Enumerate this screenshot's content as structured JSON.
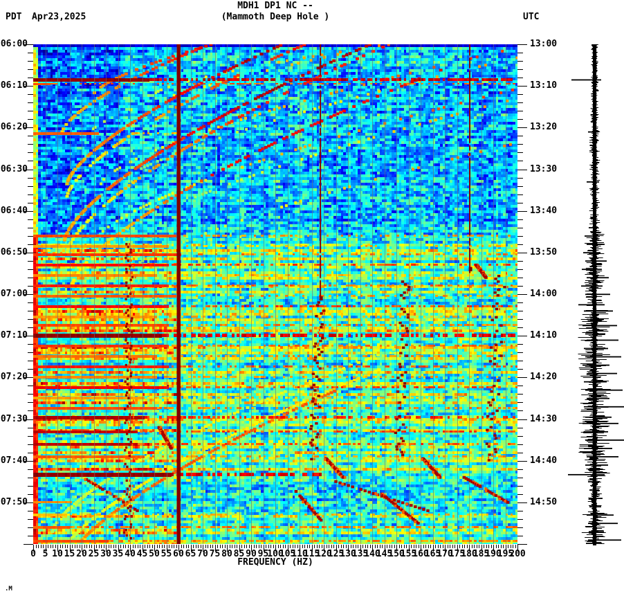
{
  "page": {
    "background": "#ffffff",
    "text_color": "#000000"
  },
  "header": {
    "station_line": "MDH1 DP1 NC --",
    "location_line": "(Mammoth Deep Hole )",
    "left_timezone": "PDT",
    "date": "Apr23,2025",
    "right_timezone": "UTC"
  },
  "watermark": ".M",
  "chart_data": {
    "type": "heatmap",
    "subtype": "seismic-spectrogram-with-seismogram-trace",
    "title": "MDH1 DP1 NC --",
    "subtitle": "(Mammoth Deep Hole )",
    "xlabel": "FREQUENCY (HZ)",
    "colormap": "jet",
    "x_axis": {
      "min_hz": 0,
      "max_hz": 200,
      "major_tick_hz": 5,
      "minor_tick_hz": 1,
      "tick_labels": [
        "0",
        "5",
        "10",
        "15",
        "20",
        "25",
        "30",
        "35",
        "40",
        "45",
        "50",
        "55",
        "60",
        "65",
        "70",
        "75",
        "80",
        "85",
        "90",
        "95",
        "100",
        "105",
        "110",
        "115",
        "120",
        "125",
        "130",
        "135",
        "140",
        "145",
        "150",
        "155",
        "160",
        "165",
        "170",
        "175",
        "180",
        "185",
        "190",
        "195",
        "200"
      ]
    },
    "y_axis_left": {
      "timezone": "PDT",
      "start": "06:00",
      "end": "08:00",
      "major_tick_min": 10,
      "minor_tick_min": 2,
      "tick_labels": [
        "06:00",
        "06:10",
        "06:20",
        "06:30",
        "06:40",
        "06:50",
        "07:00",
        "07:10",
        "07:20",
        "07:30",
        "07:40",
        "07:50"
      ]
    },
    "y_axis_right": {
      "timezone": "UTC",
      "start": "13:00",
      "end": "15:00",
      "tick_labels": [
        "13:00",
        "13:10",
        "13:20",
        "13:30",
        "13:40",
        "13:50",
        "14:00",
        "14:10",
        "14:20",
        "14:30",
        "14:40",
        "14:50"
      ]
    },
    "gridlines": {
      "vertical_every_hz": 5,
      "color": "#69757a"
    },
    "features": {
      "powerline_hz": 60,
      "active_region": {
        "start_min": 45.7,
        "calm_window_min": [
          104.5,
          112.5
        ],
        "band_hz": [
          0,
          60
        ]
      },
      "narrowband_lines": [
        [
          180.3,
          0,
          55
        ],
        [
          118.6,
          0,
          62
        ]
      ],
      "wiggly_traces": [
        [
          118.5,
          62,
          100,
          1.5,
          -3,
          0.7,
          2
        ],
        [
          154,
          57,
          100,
          1.5,
          -3,
          0.65,
          2
        ],
        [
          193,
          55,
          100,
          2,
          -4,
          0.6,
          2
        ],
        [
          39.5,
          48,
          119,
          1.2,
          -0.5,
          0.85,
          1.5
        ]
      ],
      "glide_arcs": [
        [
          12,
          13,
          25,
          80,
          0.7,
          0.95,
          0.7,
          1
        ],
        [
          21,
          26,
          12,
          95,
          0.68,
          0.95,
          0.7,
          1
        ],
        [
          33.5,
          30,
          14,
          90,
          0.7,
          0.95,
          0.75,
          1
        ],
        [
          36.5,
          30,
          14,
          88,
          0.6,
          0.85,
          0.55,
          1
        ],
        [
          47,
          34,
          13,
          92,
          0.7,
          0.95,
          0.75,
          1
        ],
        [
          50,
          34,
          14,
          90,
          0.6,
          0.85,
          0.5,
          1
        ],
        [
          58,
          30,
          16,
          85,
          0.62,
          0.88,
          0.55,
          1
        ],
        [
          117,
          22,
          8,
          60,
          0.55,
          0.6,
          0.7,
          0
        ],
        [
          124,
          24,
          10,
          62,
          0.58,
          0.64,
          0.7,
          0
        ],
        [
          126,
          22,
          12,
          55,
          0.72,
          0.78,
          0.75,
          0
        ]
      ],
      "event_stripes": [
        [
          8.5,
          5,
          47,
          1.0,
          200,
          0.7,
          0.92
        ],
        [
          9.6,
          3,
          6,
          0.82,
          200,
          0.45,
          0.78
        ],
        [
          21.5,
          4,
          26,
          0.8,
          60,
          0.3,
          0.7
        ],
        [
          46,
          4,
          58,
          0.82,
          200,
          0.35,
          0.72
        ],
        [
          48.5,
          4,
          55,
          0.74,
          200,
          0.25,
          0.68
        ],
        [
          50.5,
          4,
          60,
          0.84,
          200,
          0.35,
          0.74
        ],
        [
          53,
          4,
          55,
          0.88,
          200,
          0.45,
          0.8
        ],
        [
          55.5,
          4,
          50,
          0.76,
          200,
          0.3,
          0.7
        ],
        [
          58,
          4,
          55,
          0.86,
          200,
          0.4,
          0.76
        ],
        [
          60.5,
          4,
          58,
          0.8,
          200,
          0.35,
          0.72
        ],
        [
          63,
          4,
          55,
          0.88,
          200,
          0.5,
          0.8
        ],
        [
          65.5,
          4,
          50,
          0.74,
          200,
          0.3,
          0.7
        ],
        [
          67.5,
          4,
          55,
          0.82,
          200,
          0.4,
          0.74
        ],
        [
          70,
          6,
          52,
          1.0,
          200,
          0.7,
          0.9
        ],
        [
          72.5,
          4,
          55,
          0.84,
          200,
          0.45,
          0.76
        ],
        [
          75,
          4,
          50,
          0.78,
          200,
          0.35,
          0.72
        ],
        [
          77.5,
          4,
          55,
          0.86,
          200,
          0.45,
          0.78
        ],
        [
          80,
          4,
          50,
          0.76,
          200,
          0.35,
          0.7
        ],
        [
          82.5,
          4,
          55,
          0.9,
          200,
          0.5,
          0.8
        ],
        [
          85,
          4,
          45,
          0.74,
          200,
          0.3,
          0.68
        ],
        [
          87.5,
          4,
          50,
          0.82,
          200,
          0.4,
          0.74
        ],
        [
          89.7,
          5,
          45,
          0.97,
          200,
          0.5,
          0.84
        ],
        [
          93,
          4,
          42,
          0.95,
          200,
          0.45,
          0.8
        ],
        [
          96,
          4,
          42,
          0.95,
          200,
          0.45,
          0.8
        ],
        [
          99,
          4,
          45,
          0.8,
          200,
          0.35,
          0.72
        ],
        [
          103.3,
          6,
          56,
          1.0,
          120,
          0.6,
          0.9
        ],
        [
          110,
          3,
          15,
          0.75,
          40,
          0.2,
          0.65
        ],
        [
          113,
          4,
          12,
          0.7,
          200,
          0.45,
          0.68
        ],
        [
          116,
          4,
          14,
          0.8,
          200,
          0.55,
          0.76
        ],
        [
          119.3,
          4,
          30,
          0.82,
          200,
          0.5,
          0.74
        ]
      ],
      "streaks": [
        [
          99.5,
          121,
          104,
          128
        ],
        [
          99.5,
          161,
          104,
          168
        ],
        [
          104.5,
          22,
          112,
          43
        ],
        [
          105,
          125,
          112,
          163
        ],
        [
          104,
          178,
          110,
          196
        ],
        [
          107,
          108,
          115,
          120
        ],
        [
          108,
          144,
          115,
          159
        ],
        [
          92,
          52,
          97,
          57
        ],
        [
          53,
          183,
          56,
          187
        ]
      ]
    },
    "seismogram": {
      "spikes": [
        [
          8.5,
          31,
          7
        ],
        [
          21,
          7,
          3
        ],
        [
          33,
          9,
          4
        ],
        [
          44,
          6,
          3
        ],
        [
          46,
          12,
          5
        ],
        [
          48,
          9,
          12
        ],
        [
          50,
          14,
          6
        ],
        [
          52,
          11,
          15
        ],
        [
          54,
          16,
          8
        ],
        [
          56,
          9,
          18
        ],
        [
          58,
          17,
          9
        ],
        [
          60,
          11,
          20
        ],
        [
          62.5,
          21,
          12
        ],
        [
          64,
          13,
          24
        ],
        [
          66,
          9,
          11
        ],
        [
          67.5,
          15,
          30
        ],
        [
          69.5,
          11,
          13
        ],
        [
          71,
          9,
          32
        ],
        [
          73,
          13,
          17
        ],
        [
          75,
          11,
          36
        ],
        [
          77,
          15,
          19
        ],
        [
          79,
          9,
          30
        ],
        [
          81,
          13,
          15
        ],
        [
          83,
          11,
          38
        ],
        [
          85,
          9,
          19
        ],
        [
          87,
          13,
          42
        ],
        [
          89.5,
          11,
          22
        ],
        [
          91,
          15,
          32
        ],
        [
          93,
          9,
          17
        ],
        [
          95,
          11,
          40
        ],
        [
          97,
          13,
          23
        ],
        [
          99,
          9,
          32
        ],
        [
          101,
          11,
          17
        ],
        [
          103.3,
          36,
          12
        ],
        [
          105,
          7,
          5
        ],
        [
          107,
          5,
          4
        ],
        [
          109,
          6,
          9
        ],
        [
          111,
          5,
          7
        ],
        [
          113,
          9,
          25
        ],
        [
          115,
          7,
          31
        ],
        [
          117,
          6,
          11
        ],
        [
          119,
          7,
          36
        ],
        [
          119.8,
          10,
          8
        ]
      ]
    }
  }
}
